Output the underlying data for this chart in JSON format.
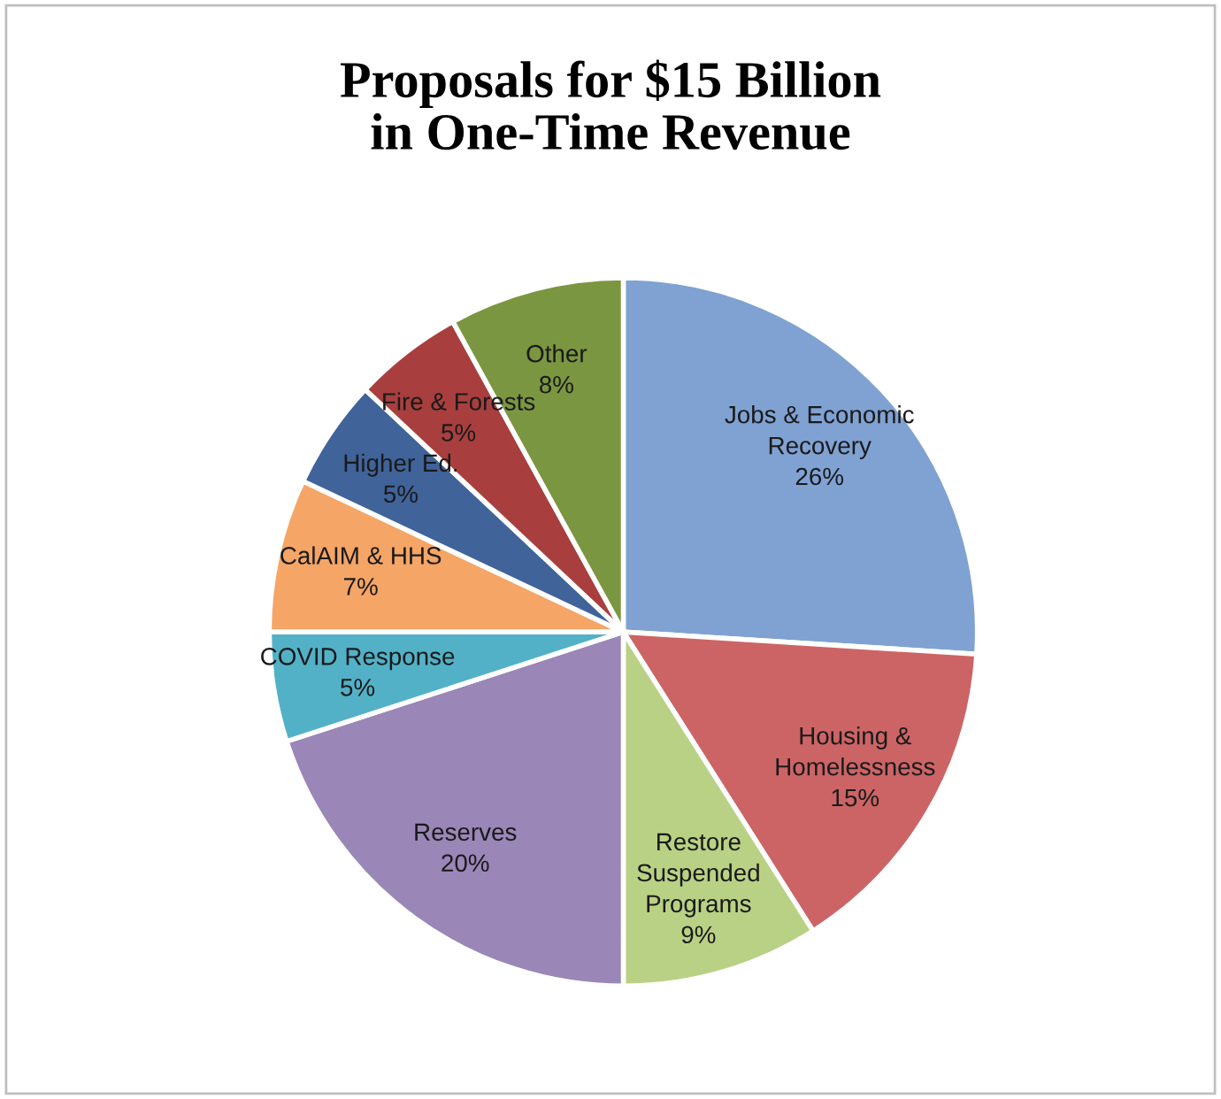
{
  "chart_data": {
    "type": "pie",
    "title": "Proposals for $15 Billion\nin One-Time Revenue",
    "categories": [
      "Jobs & Economic\nRecovery",
      "Housing &\nHomelessness",
      "Restore\nSuspended\nPrograms",
      "Reserves",
      "COVID Response",
      "CalAIM & HHS",
      "Higher Ed.",
      "Fire & Forests",
      "Other"
    ],
    "values": [
      26,
      15,
      9,
      20,
      5,
      7,
      5,
      5,
      8
    ],
    "value_labels": [
      "26%",
      "15%",
      "9%",
      "20%",
      "5%",
      "7%",
      "5%",
      "5%",
      "8%"
    ],
    "colors": [
      "#7fa2d2",
      "#cc6465",
      "#b9d184",
      "#9a86b7",
      "#52b1c7",
      "#f5a566",
      "#40639a",
      "#a83f3e",
      "#7b9640"
    ],
    "legend": false
  }
}
